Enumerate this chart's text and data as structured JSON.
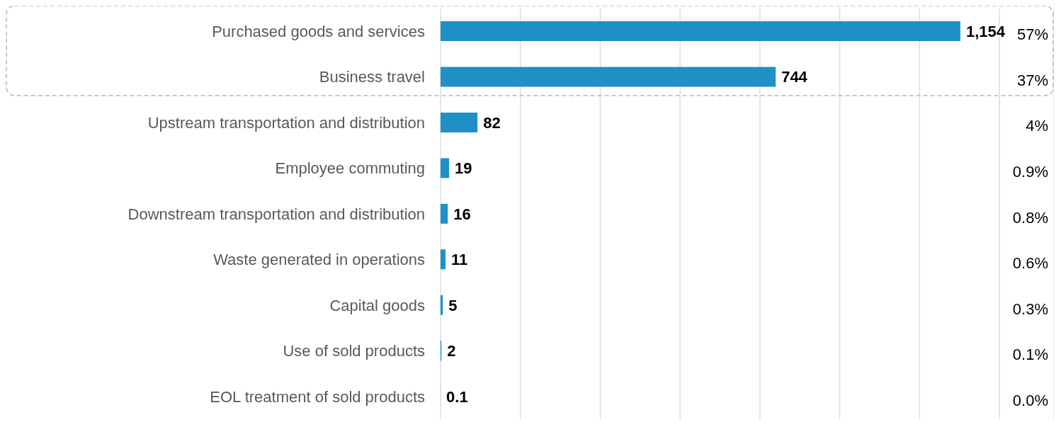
{
  "chart_data": {
    "type": "bar",
    "orientation": "horizontal",
    "categories": [
      "Purchased goods and services",
      "Business travel",
      "Upstream transportation and distribution",
      "Employee commuting",
      "Downstream transportation and distribution",
      "Waste generated in operations",
      "Capital goods",
      "Use of sold products",
      "EOL treatment of sold products"
    ],
    "values": [
      1154,
      744,
      82,
      19,
      16,
      11,
      5,
      2,
      0.1
    ],
    "value_labels": [
      "1,154",
      "744",
      "82",
      "19",
      "16",
      "11",
      "5",
      "2",
      "0.1"
    ],
    "color": "#1f91c6",
    "grid": "x",
    "tick_labels": "y",
    "annotations": [
      "57%",
      "37%",
      "4%",
      "0.9%",
      "0.8%",
      "0.6%",
      "0.3%",
      "0.1%",
      "0.0%"
    ]
  }
}
